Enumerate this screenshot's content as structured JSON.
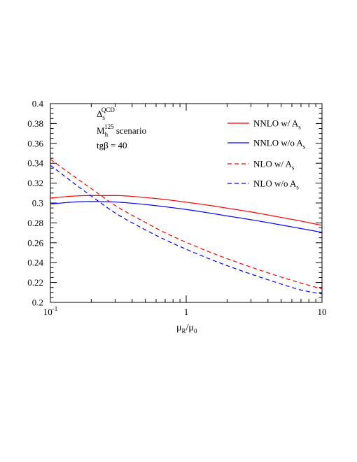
{
  "chart_data": {
    "type": "line",
    "x_scale": "log",
    "xlim": [
      0.1,
      10
    ],
    "ylim": [
      0.2,
      0.4
    ],
    "x_tick_labels": [
      {
        "x": 0.1,
        "base": "10",
        "exp": "-1"
      },
      {
        "x": 1,
        "base": "1",
        "exp": ""
      },
      {
        "x": 10,
        "base": "10",
        "exp": ""
      }
    ],
    "y_ticks": [
      0.2,
      0.22,
      0.24,
      0.26,
      0.28,
      0.3,
      0.32,
      0.34,
      0.36,
      0.38,
      0.4
    ],
    "y_tick_labels": [
      "0.2",
      "0.22",
      "0.24",
      "0.26",
      "0.28",
      "0.3",
      "0.32",
      "0.34",
      "0.36",
      "0.38",
      "0.4"
    ],
    "xlabel": {
      "mu1": "μ",
      "sub1": "R",
      "slash": "/",
      "mu2": "μ",
      "sub2": "0"
    },
    "annotation": {
      "line1": {
        "main": "Δ",
        "sub": "s",
        "sup": "QCD"
      },
      "line2": {
        "main": "M",
        "sub": "h",
        "sup": "125",
        "rest": " scenario"
      },
      "line3": "tgβ = 40"
    },
    "series": [
      {
        "name": "NNLO w/  A",
        "name_sub": "s",
        "color": "#ff0000",
        "dash": "solid",
        "x": [
          0.1,
          0.15,
          0.2,
          0.3,
          0.5,
          0.7,
          1,
          1.5,
          2,
          3,
          5,
          7,
          10
        ],
        "y": [
          0.305,
          0.307,
          0.3075,
          0.3075,
          0.3055,
          0.3035,
          0.3008,
          0.2975,
          0.2948,
          0.291,
          0.2855,
          0.2818,
          0.2775
        ]
      },
      {
        "name": "NNLO w/o A",
        "name_sub": "s",
        "color": "#0000ff",
        "dash": "solid",
        "x": [
          0.1,
          0.15,
          0.2,
          0.3,
          0.5,
          0.7,
          1,
          1.5,
          2,
          3,
          5,
          7,
          10
        ],
        "y": [
          0.299,
          0.301,
          0.3015,
          0.301,
          0.2985,
          0.2962,
          0.2935,
          0.2898,
          0.287,
          0.2832,
          0.2779,
          0.2743,
          0.2705
        ]
      },
      {
        "name": "NLO w/  A",
        "name_sub": "s",
        "color": "#ff0000",
        "dash": "dashed",
        "x": [
          0.1,
          0.15,
          0.2,
          0.3,
          0.5,
          0.7,
          1,
          1.5,
          2,
          3,
          5,
          7,
          10
        ],
        "y": [
          0.344,
          0.3265,
          0.3145,
          0.2975,
          0.2805,
          0.27,
          0.2605,
          0.2505,
          0.244,
          0.2355,
          0.2255,
          0.2195,
          0.2135
        ]
      },
      {
        "name": "NLO w/o A",
        "name_sub": "s",
        "color": "#0000ff",
        "dash": "dashed",
        "x": [
          0.1,
          0.15,
          0.2,
          0.3,
          0.5,
          0.7,
          1,
          1.5,
          2,
          3,
          5,
          7,
          10
        ],
        "y": [
          0.338,
          0.3195,
          0.307,
          0.29,
          0.273,
          0.263,
          0.2535,
          0.2435,
          0.237,
          0.2285,
          0.2185,
          0.2125,
          0.2085
        ]
      }
    ]
  }
}
